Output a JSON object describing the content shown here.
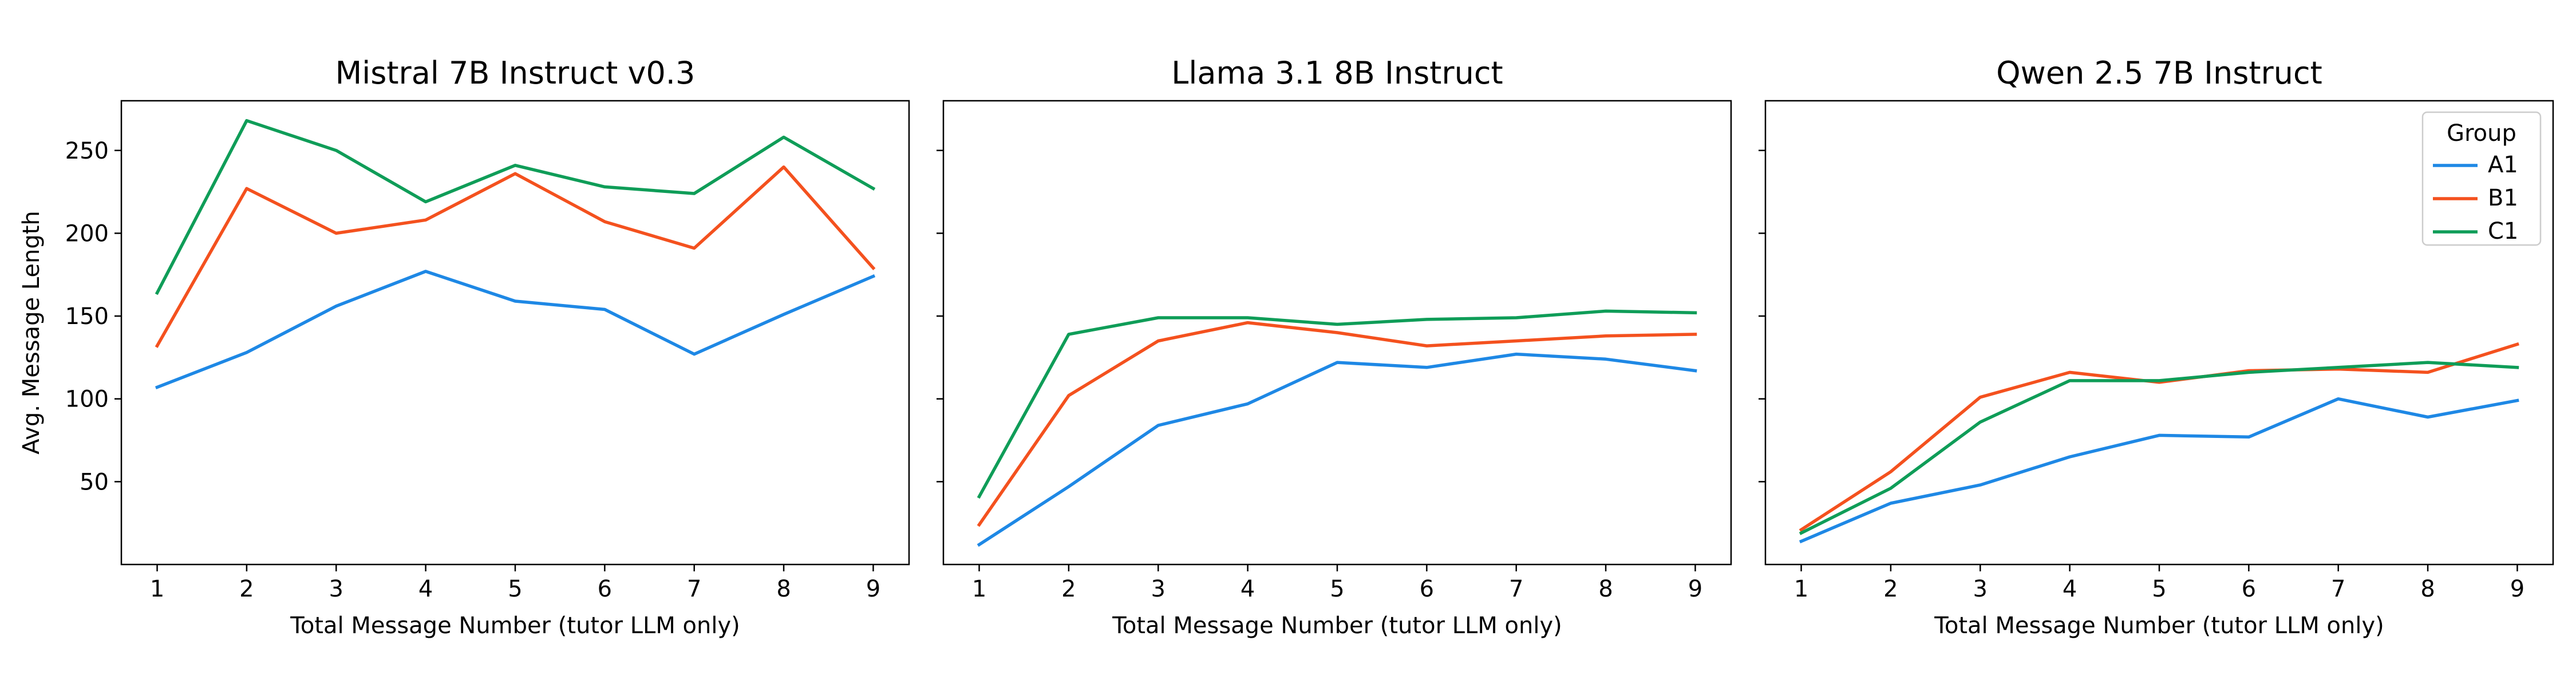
{
  "figure": {
    "ylabel": "Avg. Message Length",
    "legend": {
      "title": "Group",
      "location": "top-right",
      "entries": [
        "A1",
        "B1",
        "C1"
      ]
    },
    "series_colors": {
      "A1": "#1e88e5",
      "B1": "#f4511e",
      "C1": "#0f9d58"
    }
  },
  "chart_data": [
    {
      "type": "line",
      "title": "Mistral 7B Instruct v0.3",
      "xlabel": "Total Message Number (tutor LLM only)",
      "ylabel": "Avg. Message Length",
      "x": [
        1,
        2,
        3,
        4,
        5,
        6,
        7,
        8,
        9
      ],
      "xlim": [
        0.6,
        9.4
      ],
      "ylim": [
        0,
        280
      ],
      "yticks": [
        50,
        100,
        150,
        200,
        250
      ],
      "grid": false,
      "series": [
        {
          "name": "A1",
          "values": [
            107,
            128,
            156,
            177,
            159,
            154,
            127,
            151,
            174
          ]
        },
        {
          "name": "B1",
          "values": [
            132,
            227,
            200,
            208,
            236,
            207,
            191,
            240,
            179
          ]
        },
        {
          "name": "C1",
          "values": [
            164,
            268,
            250,
            219,
            241,
            228,
            224,
            258,
            227
          ]
        }
      ]
    },
    {
      "type": "line",
      "title": "Llama 3.1 8B Instruct",
      "xlabel": "Total Message Number (tutor LLM only)",
      "ylabel": "",
      "x": [
        1,
        2,
        3,
        4,
        5,
        6,
        7,
        8,
        9
      ],
      "xlim": [
        0.6,
        9.4
      ],
      "ylim": [
        0,
        280
      ],
      "yticks": [
        50,
        100,
        150,
        200,
        250
      ],
      "grid": false,
      "series": [
        {
          "name": "A1",
          "values": [
            12,
            47,
            84,
            97,
            122,
            119,
            127,
            124,
            117
          ]
        },
        {
          "name": "B1",
          "values": [
            24,
            102,
            135,
            146,
            140,
            132,
            135,
            138,
            139
          ]
        },
        {
          "name": "C1",
          "values": [
            41,
            139,
            149,
            149,
            145,
            148,
            149,
            153,
            152
          ]
        }
      ]
    },
    {
      "type": "line",
      "title": "Qwen 2.5 7B Instruct",
      "xlabel": "Total Message Number (tutor LLM only)",
      "ylabel": "",
      "x": [
        1,
        2,
        3,
        4,
        5,
        6,
        7,
        8,
        9
      ],
      "xlim": [
        0.6,
        9.4
      ],
      "ylim": [
        0,
        280
      ],
      "yticks": [
        50,
        100,
        150,
        200,
        250
      ],
      "grid": false,
      "legend_title": "Group",
      "series": [
        {
          "name": "A1",
          "values": [
            14,
            37,
            48,
            65,
            78,
            77,
            100,
            89,
            99
          ]
        },
        {
          "name": "B1",
          "values": [
            21,
            56,
            101,
            116,
            110,
            117,
            118,
            116,
            133
          ]
        },
        {
          "name": "C1",
          "values": [
            19,
            46,
            86,
            111,
            111,
            116,
            119,
            122,
            119
          ]
        }
      ]
    }
  ]
}
